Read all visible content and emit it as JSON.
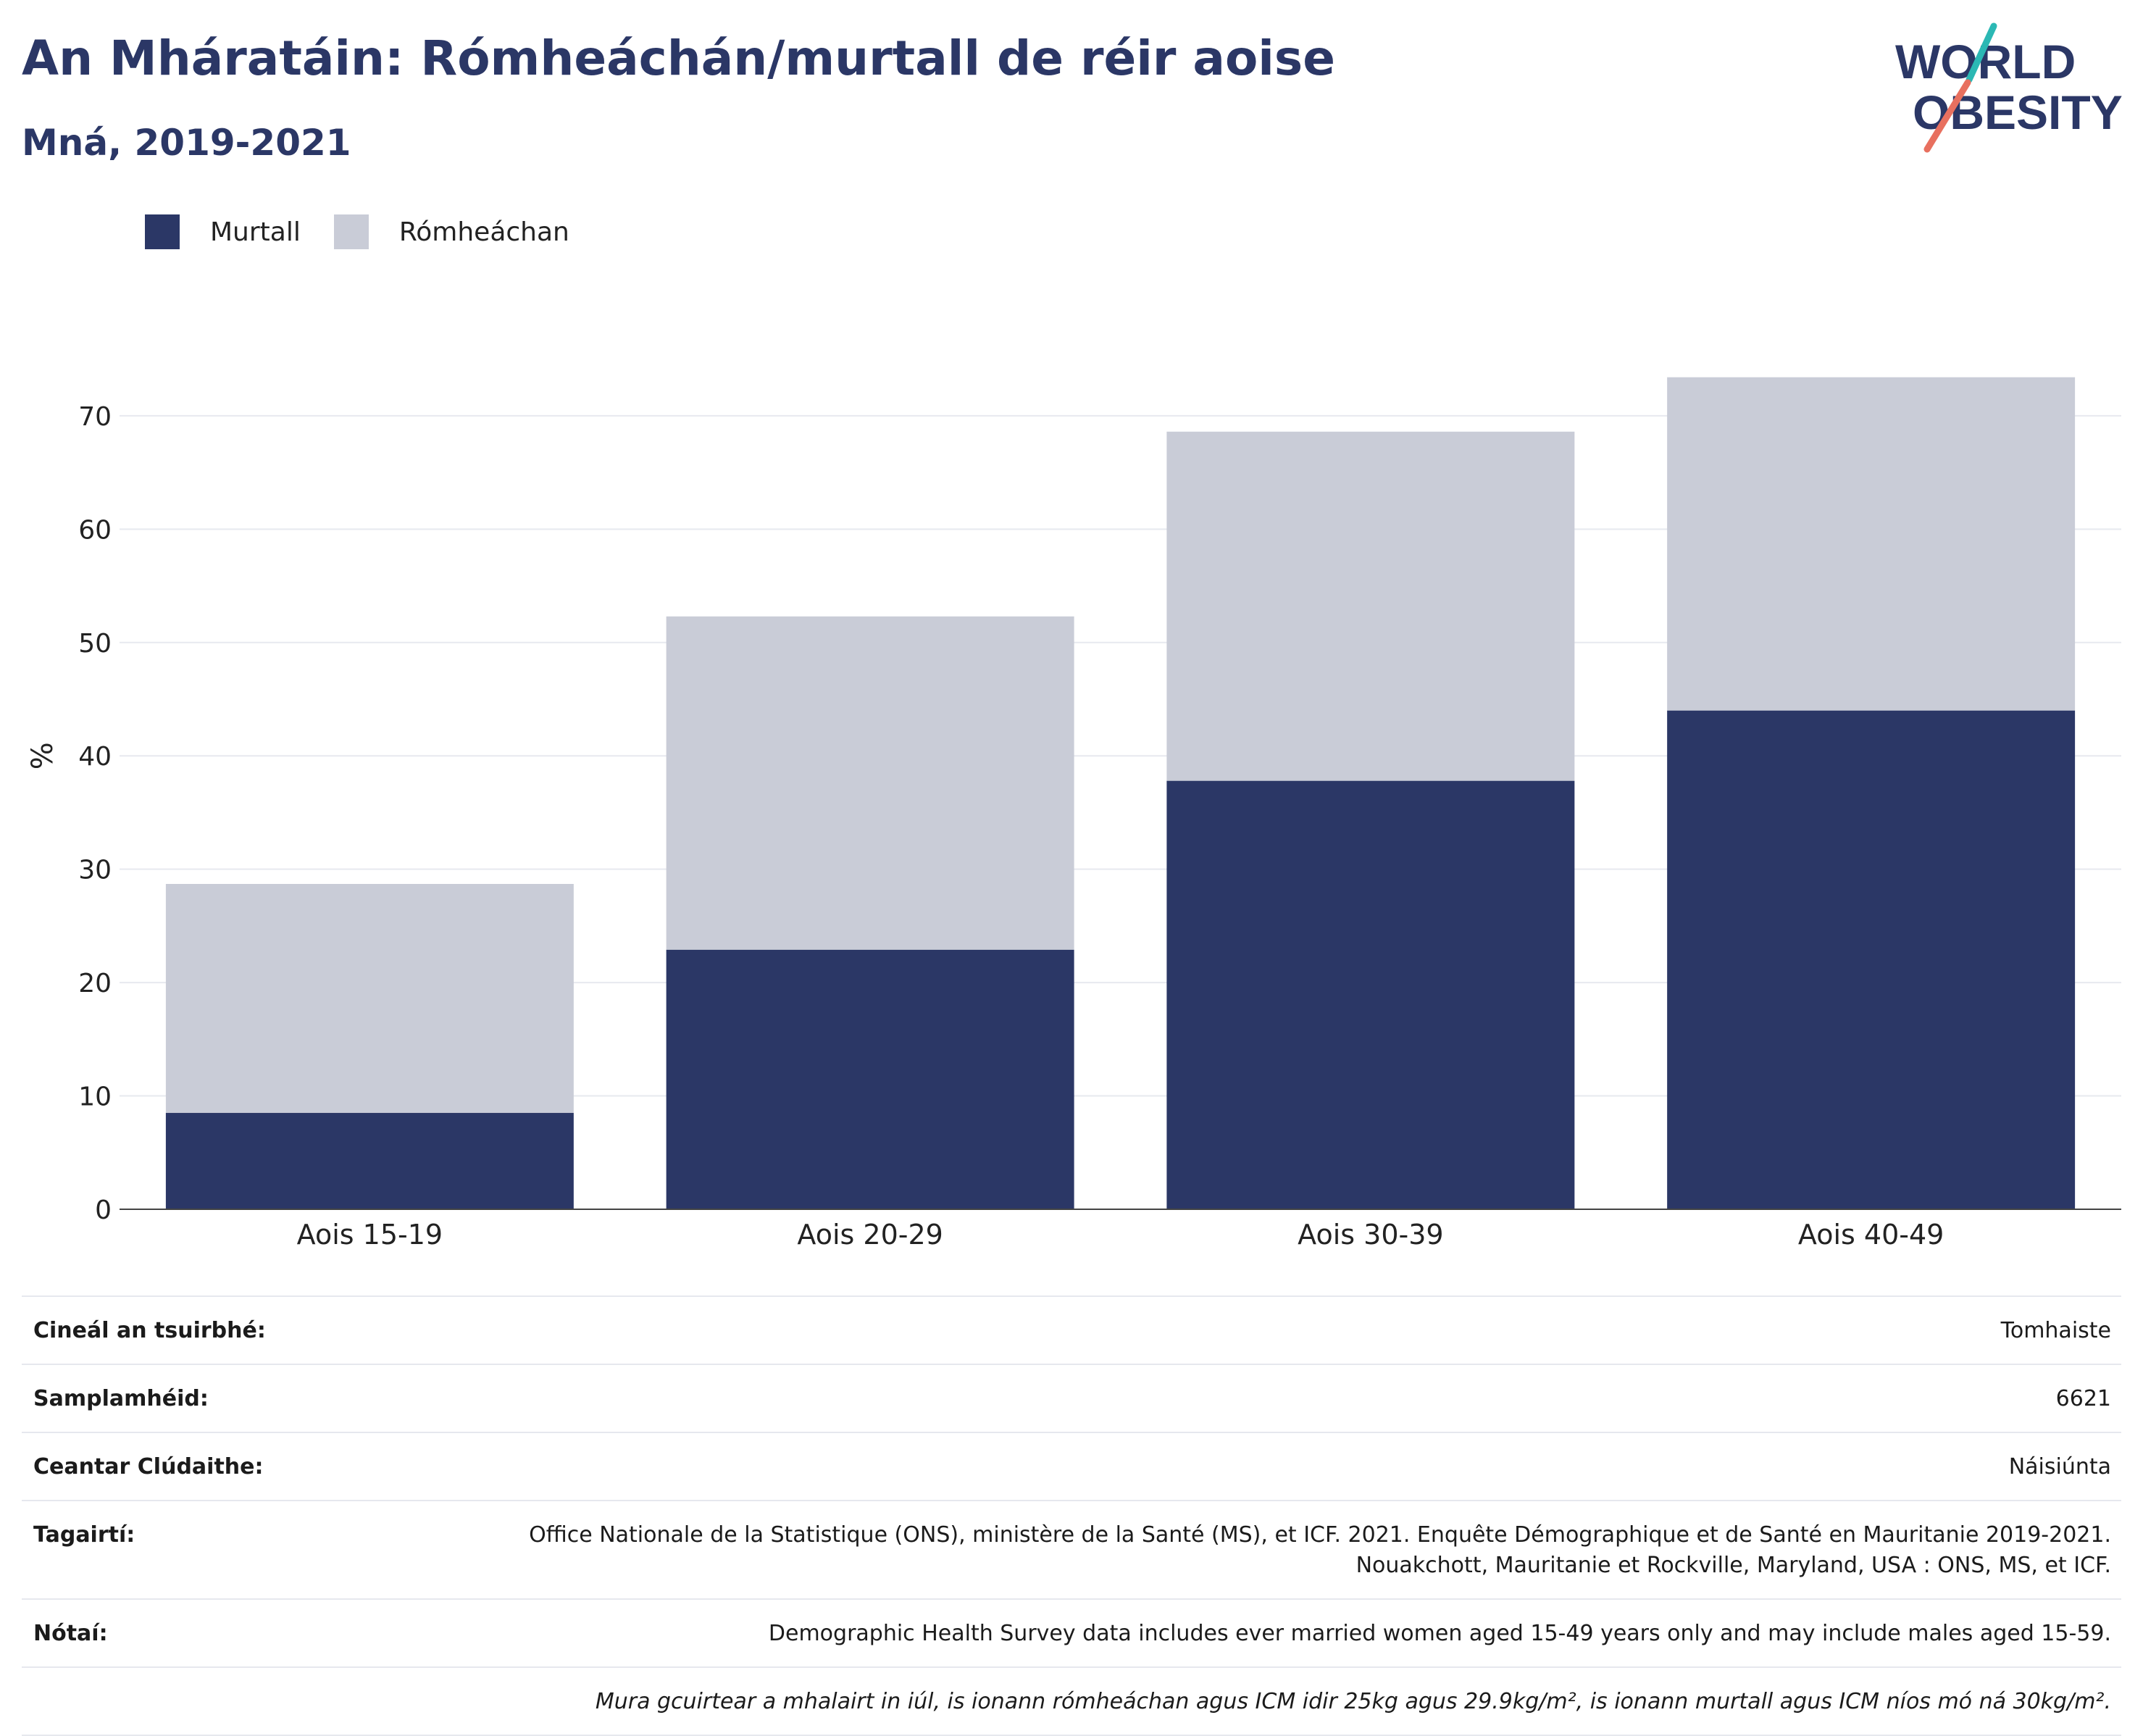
{
  "title": "An Mháratáin: Rómheáchán/murtall de réir aoise",
  "subtitle": "Mná, 2019-2021",
  "logo": {
    "line1": "WORLD",
    "line2": "OBESITY",
    "accent_teal": "#2bb8b4",
    "accent_coral": "#e8705f",
    "text_color": "#2b3766"
  },
  "legend": [
    {
      "label": "Murtall",
      "color": "#2b3766"
    },
    {
      "label": "Rómheáchan",
      "color": "#c9ccd7"
    }
  ],
  "chart_data": {
    "type": "bar",
    "stacked": true,
    "categories": [
      "Aois 15-19",
      "Aois 20-29",
      "Aois 30-39",
      "Aois 40-49"
    ],
    "series": [
      {
        "name": "Murtall",
        "values": [
          8.5,
          22.9,
          37.8,
          44.0
        ],
        "color": "#2b3766"
      },
      {
        "name": "Rómheáchan",
        "values": [
          20.2,
          29.4,
          30.8,
          29.4
        ],
        "color": "#c9ccd7"
      }
    ],
    "ylabel": "%",
    "ylim": [
      0,
      76
    ],
    "yticks": [
      0,
      10,
      20,
      30,
      40,
      50,
      60,
      70
    ],
    "grid": true
  },
  "info": [
    {
      "label": "Cineál an tsuirbhé:",
      "value": "Tomhaiste"
    },
    {
      "label": "Samplamhéid:",
      "value": "6621"
    },
    {
      "label": "Ceantar Clúdaithe:",
      "value": "Náisiúnta"
    },
    {
      "label": "Tagairtí:",
      "value": "Office Nationale de la Statistique (ONS), ministère de la Santé (MS), et ICF. 2021. Enquête Démographique et de Santé en Mauritanie 2019-2021. Nouakchott, Mauritanie et Rockville, Maryland, USA : ONS, MS, et ICF."
    },
    {
      "label": "Nótaí:",
      "value": "Demographic Health Survey data includes ever married women aged 15-49 years only and may include males aged 15-59."
    },
    {
      "label": "",
      "value": "Mura gcuirtear a mhalairt in iúl, is ionann rómheáchan agus ICM idir 25kg agus 29.9kg/m², is ionann murtall agus ICM níos mó ná 30kg/m²."
    }
  ]
}
